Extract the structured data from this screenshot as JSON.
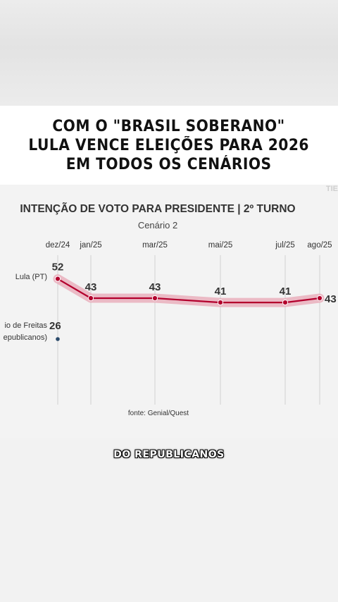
{
  "headline": {
    "line1": "COM O \"BRASIL SOBERANO\"",
    "line2": "LULA VENCE ELEIÇÕES PARA 2026",
    "line3": "EM TODOS OS CENÁRIOS"
  },
  "watermark": "TIE",
  "caption": "DO REPUBLICANOS",
  "chart_data": {
    "type": "line",
    "title": "INTENÇÃO DE VOTO PARA PRESIDENTE | 2º TURNO",
    "subtitle": "Cenário 2",
    "source": "fonte: Genial/Quest",
    "categories": [
      "dez/24",
      "jan/25",
      "mar/25",
      "mai/25",
      "jul/25",
      "ago/25"
    ],
    "series": [
      {
        "name": "Lula (PT)",
        "values": [
          52,
          43,
          43,
          41,
          41,
          43
        ],
        "color": "#b3002d",
        "band_color": "#e8a7b6"
      },
      {
        "name": "...io de Freitas (Republicanos)",
        "label_lines": [
          "io de Freitas",
          "epublicanos)"
        ],
        "values": [
          26,
          null,
          null,
          null,
          null,
          null
        ],
        "color": "#2b4a6b"
      }
    ],
    "ylim": [
      20,
      60
    ],
    "grid": "vertical"
  }
}
